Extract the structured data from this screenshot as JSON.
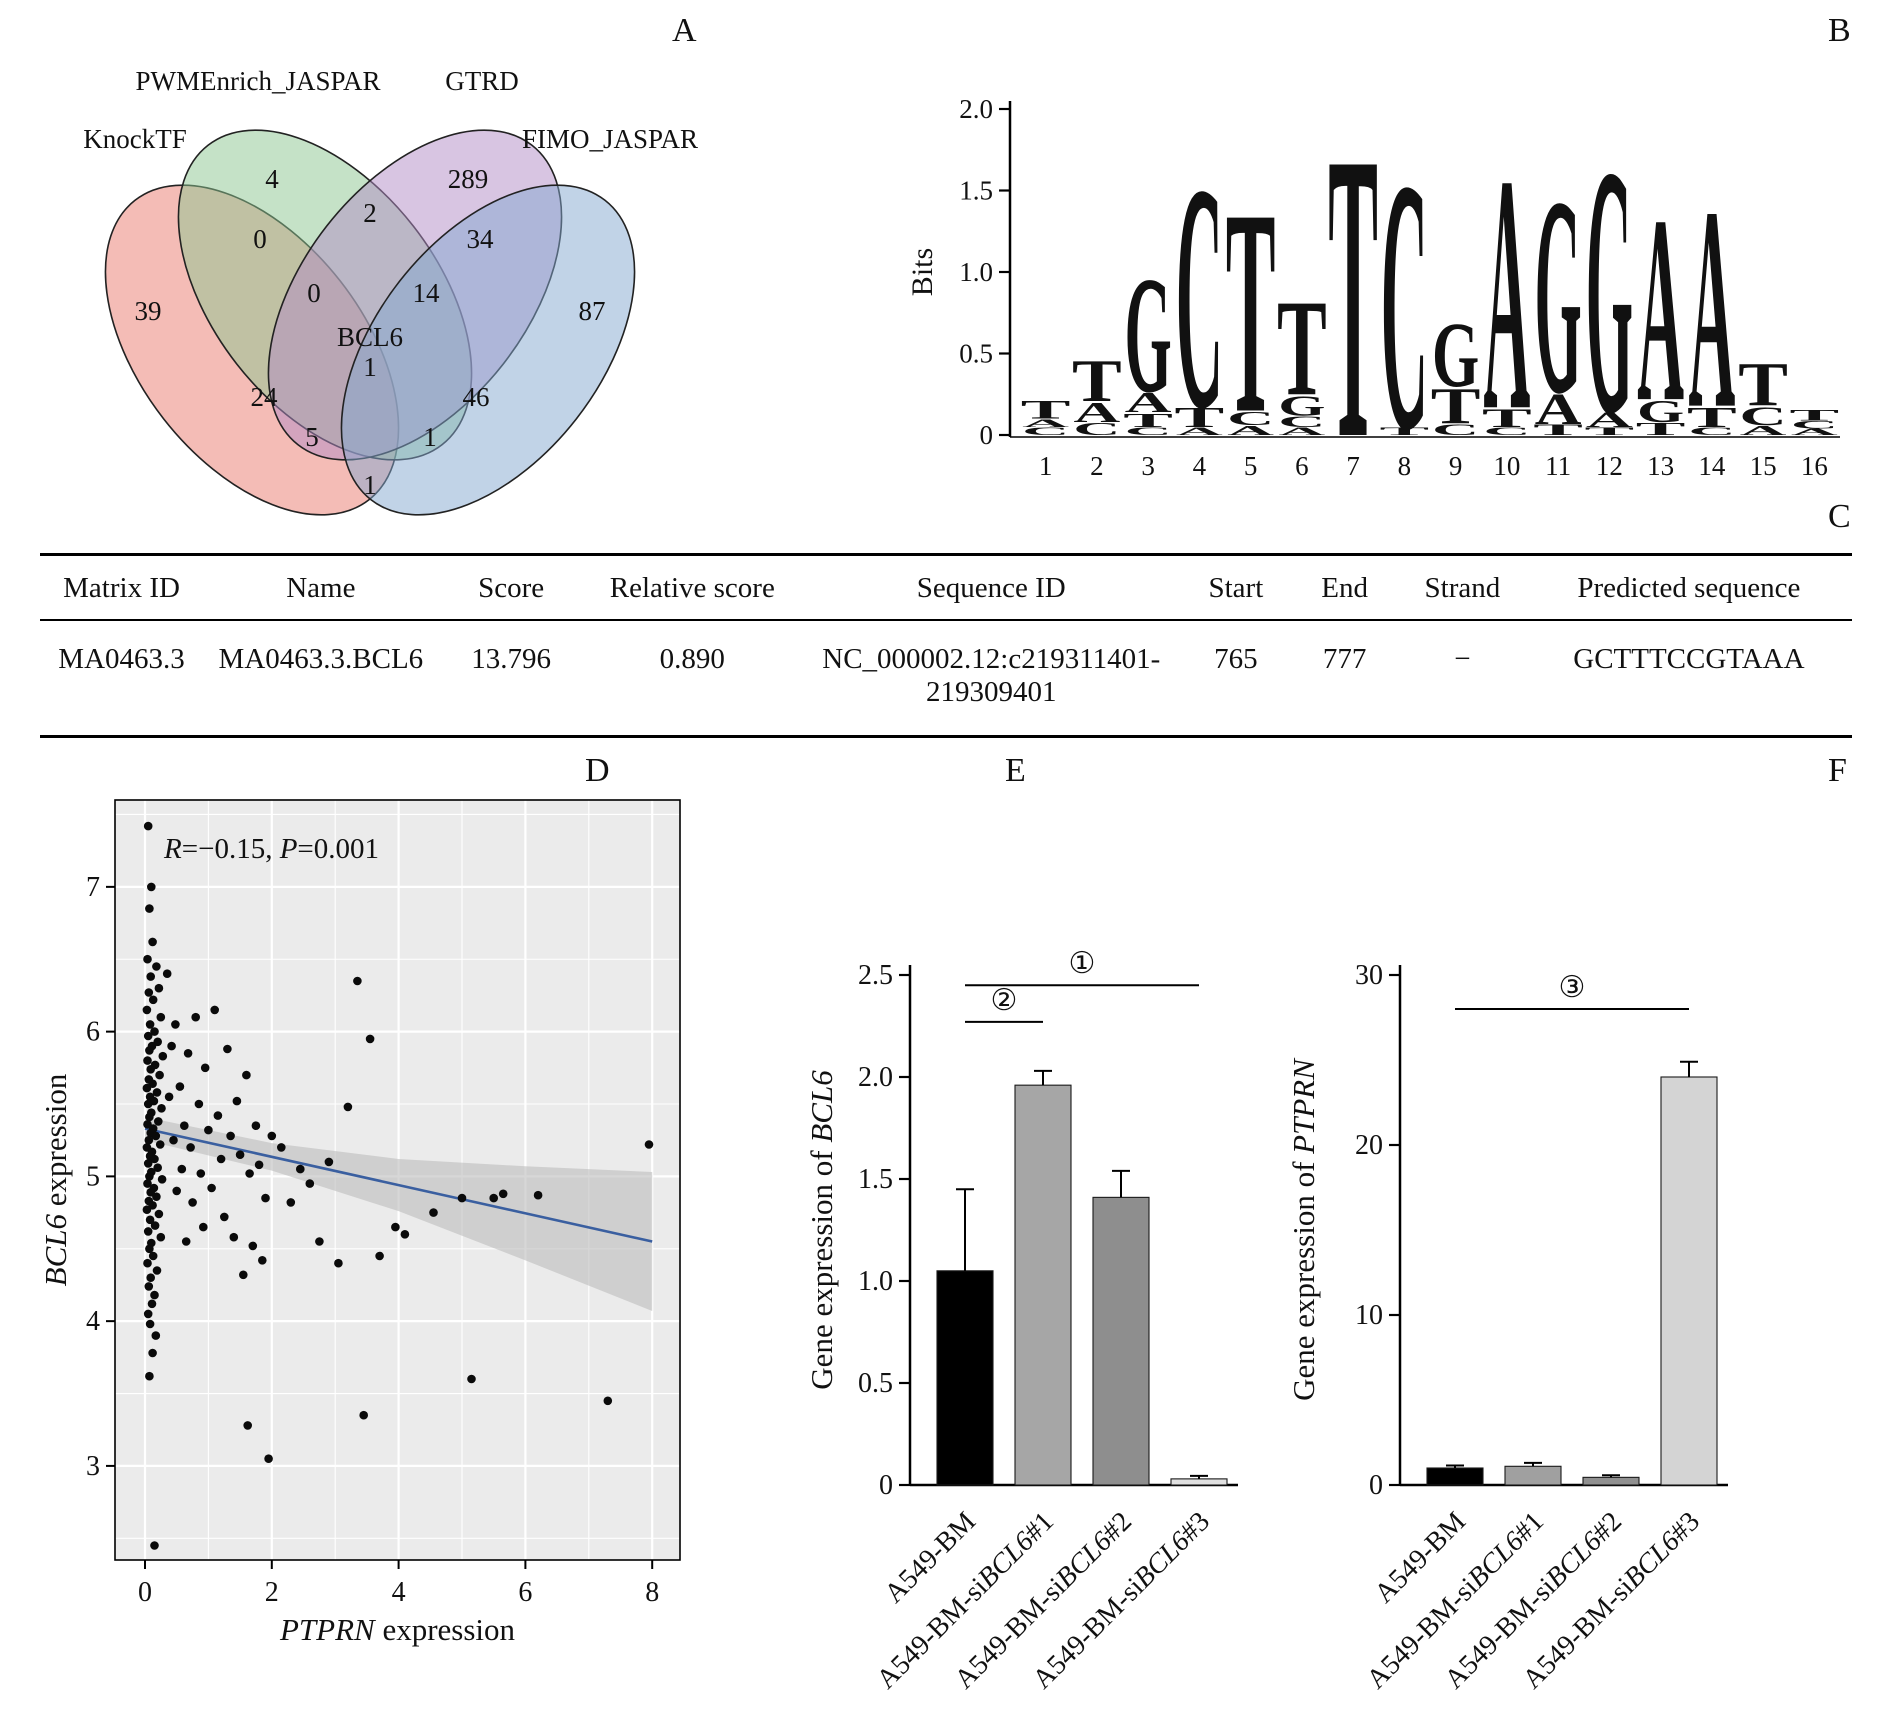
{
  "figure": {
    "panel_letters": {
      "a": "A",
      "b": "B",
      "c": "C",
      "d": "D",
      "e": "E",
      "f": "F"
    }
  },
  "chart_data": [
    {
      "id": "venn",
      "type": "venn",
      "sets": [
        {
          "name": "KnockTF",
          "color": "#e9796d"
        },
        {
          "name": "PWMEnrich_JASPAR",
          "color": "#8cc58f"
        },
        {
          "name": "GTRD",
          "color": "#b18cc6"
        },
        {
          "name": "FIMO_JASPAR",
          "color": "#84a8d0"
        }
      ],
      "center_gene": "BCL6",
      "regions": {
        "knocktf_only": "39",
        "pwmenrich_only": "4",
        "gtrd_only": "289",
        "fimo_only": "87",
        "knocktf_pwmenrich": "0",
        "pwmenrich_gtrd": "2",
        "gtrd_fimo": "34",
        "knocktf_pwmenrich_gtrd": "0",
        "pwmenrich_gtrd_fimo": "14",
        "all_four": "1",
        "knocktf_gtrd": "24",
        "pwmenrich_fimo": "46",
        "knocktf_pwmenrich_fimo": "5",
        "knocktf_gtrd_fimo": "1",
        "knocktf_fimo": "1"
      }
    },
    {
      "id": "motif_logo",
      "type": "logo",
      "ylabel": "Bits",
      "ylim": [
        0,
        2
      ],
      "yticks": [
        "0",
        "0.5",
        "1.0",
        "1.5",
        "2.0"
      ],
      "xticks": [
        "1",
        "2",
        "3",
        "4",
        "5",
        "6",
        "7",
        "8",
        "9",
        "10",
        "11",
        "12",
        "13",
        "14",
        "15",
        "16"
      ],
      "colors": {
        "A": "#2e9e54",
        "C": "#2a5fa5",
        "G": "#f0a32f",
        "T": "#d8414f"
      },
      "stacks": [
        [
          [
            "C",
            0.05
          ],
          [
            "A",
            0.05
          ],
          [
            "T",
            0.12
          ]
        ],
        [
          [
            "C",
            0.08
          ],
          [
            "A",
            0.13
          ],
          [
            "T",
            0.27
          ]
        ],
        [
          [
            "C",
            0.05
          ],
          [
            "T",
            0.09
          ],
          [
            "A",
            0.13
          ],
          [
            "G",
            0.75
          ]
        ],
        [
          [
            "A",
            0.05
          ],
          [
            "T",
            0.13
          ],
          [
            "C",
            1.45
          ]
        ],
        [
          [
            "A",
            0.06
          ],
          [
            "C",
            0.09
          ],
          [
            "T",
            1.32
          ]
        ],
        [
          [
            "A",
            0.05
          ],
          [
            "C",
            0.07
          ],
          [
            "G",
            0.13
          ],
          [
            "T",
            0.62
          ]
        ],
        [
          [
            "T",
            1.85
          ]
        ],
        [
          [
            "T",
            0.05
          ],
          [
            "C",
            1.62
          ]
        ],
        [
          [
            "C",
            0.07
          ],
          [
            "T",
            0.23
          ],
          [
            "G",
            0.42
          ]
        ],
        [
          [
            "C",
            0.05
          ],
          [
            "T",
            0.12
          ],
          [
            "A",
            1.52
          ]
        ],
        [
          [
            "T",
            0.07
          ],
          [
            "A",
            0.2
          ],
          [
            "G",
            1.27
          ]
        ],
        [
          [
            "T",
            0.05
          ],
          [
            "A",
            0.1
          ],
          [
            "G",
            1.6
          ]
        ],
        [
          [
            "T",
            0.08
          ],
          [
            "G",
            0.14
          ],
          [
            "A",
            1.2
          ]
        ],
        [
          [
            "C",
            0.05
          ],
          [
            "T",
            0.13
          ],
          [
            "A",
            1.3
          ]
        ],
        [
          [
            "A",
            0.06
          ],
          [
            "C",
            0.12
          ],
          [
            "T",
            0.28
          ]
        ],
        [
          [
            "A",
            0.04
          ],
          [
            "C",
            0.05
          ],
          [
            "T",
            0.07
          ]
        ]
      ]
    },
    {
      "id": "correlation_scatter",
      "type": "scatter",
      "annotation_segments": [
        {
          "text": "R",
          "italic": true
        },
        {
          "text": "=−0.15, ",
          "italic": false
        },
        {
          "text": "P",
          "italic": true
        },
        {
          "text": "=0.001",
          "italic": false
        }
      ],
      "xlabel_segments": [
        {
          "text": "PTPRN",
          "italic": true
        },
        {
          "text": " expression",
          "italic": false
        }
      ],
      "ylabel_segments": [
        {
          "text": "BCL6",
          "italic": true
        },
        {
          "text": " expression",
          "italic": false
        }
      ],
      "xlim": [
        -0.5,
        8.45
      ],
      "ylim": [
        2.35,
        7.6
      ],
      "xticks": [
        0,
        2,
        4,
        6,
        8
      ],
      "yticks": [
        3,
        4,
        5,
        6,
        7
      ],
      "regression": {
        "x": [
          0,
          8
        ],
        "y": [
          5.33,
          4.55
        ],
        "color": "#3a5fa0"
      },
      "ci_band": {
        "x": [
          0,
          2,
          4,
          6,
          8
        ],
        "upper": [
          5.41,
          5.23,
          5.12,
          5.07,
          5.03
        ],
        "lower": [
          5.25,
          5.04,
          4.76,
          4.42,
          4.07
        ]
      },
      "points": [
        [
          0.05,
          7.42
        ],
        [
          0.1,
          7.0
        ],
        [
          0.07,
          6.85
        ],
        [
          0.12,
          6.62
        ],
        [
          0.04,
          6.5
        ],
        [
          0.18,
          6.45
        ],
        [
          0.09,
          6.38
        ],
        [
          0.22,
          6.3
        ],
        [
          0.06,
          6.27
        ],
        [
          0.13,
          6.22
        ],
        [
          0.03,
          6.15
        ],
        [
          0.25,
          6.1
        ],
        [
          0.08,
          6.05
        ],
        [
          0.15,
          6.0
        ],
        [
          0.05,
          5.97
        ],
        [
          0.2,
          5.93
        ],
        [
          0.11,
          5.9
        ],
        [
          0.07,
          5.87
        ],
        [
          0.28,
          5.83
        ],
        [
          0.04,
          5.8
        ],
        [
          0.16,
          5.77
        ],
        [
          0.09,
          5.74
        ],
        [
          0.23,
          5.7
        ],
        [
          0.06,
          5.67
        ],
        [
          0.12,
          5.64
        ],
        [
          0.03,
          5.61
        ],
        [
          0.19,
          5.58
        ],
        [
          0.08,
          5.55
        ],
        [
          0.14,
          5.52
        ],
        [
          0.05,
          5.5
        ],
        [
          0.26,
          5.47
        ],
        [
          0.1,
          5.44
        ],
        [
          0.07,
          5.41
        ],
        [
          0.21,
          5.38
        ],
        [
          0.04,
          5.36
        ],
        [
          0.13,
          5.33
        ],
        [
          0.09,
          5.3
        ],
        [
          0.17,
          5.28
        ],
        [
          0.06,
          5.25
        ],
        [
          0.24,
          5.22
        ],
        [
          0.03,
          5.2
        ],
        [
          0.11,
          5.17
        ],
        [
          0.08,
          5.14
        ],
        [
          0.15,
          5.12
        ],
        [
          0.05,
          5.09
        ],
        [
          0.2,
          5.06
        ],
        [
          0.1,
          5.03
        ],
        [
          0.07,
          5.0
        ],
        [
          0.27,
          4.98
        ],
        [
          0.04,
          4.95
        ],
        [
          0.14,
          4.92
        ],
        [
          0.09,
          4.89
        ],
        [
          0.18,
          4.86
        ],
        [
          0.06,
          4.83
        ],
        [
          0.12,
          4.8
        ],
        [
          0.03,
          4.77
        ],
        [
          0.22,
          4.74
        ],
        [
          0.08,
          4.7
        ],
        [
          0.16,
          4.66
        ],
        [
          0.05,
          4.62
        ],
        [
          0.25,
          4.58
        ],
        [
          0.1,
          4.54
        ],
        [
          0.07,
          4.5
        ],
        [
          0.13,
          4.45
        ],
        [
          0.04,
          4.4
        ],
        [
          0.19,
          4.35
        ],
        [
          0.09,
          4.3
        ],
        [
          0.06,
          4.24
        ],
        [
          0.15,
          4.18
        ],
        [
          0.11,
          4.12
        ],
        [
          0.05,
          4.05
        ],
        [
          0.08,
          3.98
        ],
        [
          0.17,
          3.9
        ],
        [
          0.12,
          3.78
        ],
        [
          0.07,
          3.62
        ],
        [
          0.15,
          2.45
        ],
        [
          0.35,
          6.4
        ],
        [
          0.38,
          5.55
        ],
        [
          0.42,
          5.9
        ],
        [
          0.45,
          5.25
        ],
        [
          0.48,
          6.05
        ],
        [
          0.5,
          4.9
        ],
        [
          0.55,
          5.62
        ],
        [
          0.58,
          5.05
        ],
        [
          0.62,
          5.35
        ],
        [
          0.65,
          4.55
        ],
        [
          0.68,
          5.85
        ],
        [
          0.72,
          5.2
        ],
        [
          0.75,
          4.82
        ],
        [
          0.8,
          6.1
        ],
        [
          0.85,
          5.5
        ],
        [
          0.88,
          5.02
        ],
        [
          0.92,
          4.65
        ],
        [
          0.95,
          5.75
        ],
        [
          1.0,
          5.32
        ],
        [
          1.05,
          4.92
        ],
        [
          1.1,
          6.15
        ],
        [
          1.15,
          5.42
        ],
        [
          1.2,
          5.12
        ],
        [
          1.25,
          4.72
        ],
        [
          1.3,
          5.88
        ],
        [
          1.35,
          5.28
        ],
        [
          1.4,
          4.58
        ],
        [
          1.45,
          5.52
        ],
        [
          1.5,
          5.15
        ],
        [
          1.55,
          4.32
        ],
        [
          1.6,
          5.7
        ],
        [
          1.62,
          3.28
        ],
        [
          1.65,
          5.02
        ],
        [
          1.7,
          4.52
        ],
        [
          1.75,
          5.35
        ],
        [
          1.8,
          5.08
        ],
        [
          1.85,
          4.42
        ],
        [
          1.9,
          4.85
        ],
        [
          1.95,
          3.05
        ],
        [
          2.0,
          5.28
        ],
        [
          2.15,
          5.2
        ],
        [
          2.3,
          4.82
        ],
        [
          2.45,
          5.05
        ],
        [
          2.6,
          4.95
        ],
        [
          2.75,
          4.55
        ],
        [
          2.9,
          5.1
        ],
        [
          3.05,
          4.4
        ],
        [
          3.2,
          5.48
        ],
        [
          3.35,
          6.35
        ],
        [
          3.45,
          3.35
        ],
        [
          3.55,
          5.95
        ],
        [
          3.7,
          4.45
        ],
        [
          3.95,
          4.65
        ],
        [
          4.1,
          4.6
        ],
        [
          4.55,
          4.75
        ],
        [
          5.0,
          4.85
        ],
        [
          5.15,
          3.6
        ],
        [
          5.5,
          4.85
        ],
        [
          5.65,
          4.88
        ],
        [
          6.2,
          4.87
        ],
        [
          7.3,
          3.45
        ],
        [
          7.95,
          5.22
        ]
      ]
    },
    {
      "id": "bcl6_expression_bars",
      "type": "bar",
      "ylabel_segments": [
        {
          "text": "Gene expression of ",
          "italic": false
        },
        {
          "text": "BCL6",
          "italic": true
        }
      ],
      "ylim": [
        0,
        2.5
      ],
      "yticks": [
        "0",
        "0.5",
        "1.0",
        "1.5",
        "2.0",
        "2.5"
      ],
      "categories": [
        {
          "segments": [
            {
              "text": "A549-BM",
              "italic": false
            }
          ]
        },
        {
          "segments": [
            {
              "text": "A549-BM-si",
              "italic": false
            },
            {
              "text": "BCL6",
              "italic": true
            },
            {
              "text": "#1",
              "italic": false
            }
          ]
        },
        {
          "segments": [
            {
              "text": "A549-BM-si",
              "italic": false
            },
            {
              "text": "BCL6",
              "italic": true
            },
            {
              "text": "#2",
              "italic": false
            }
          ]
        },
        {
          "segments": [
            {
              "text": "A549-BM-si",
              "italic": false
            },
            {
              "text": "BCL6",
              "italic": true
            },
            {
              "text": "#3",
              "italic": false
            }
          ]
        }
      ],
      "values": [
        1.05,
        1.96,
        1.41,
        0.03
      ],
      "errors": [
        0.4,
        0.07,
        0.13,
        0.015
      ],
      "colors": [
        "#000000",
        "#a6a6a6",
        "#8e8e8e",
        "#e0e0e0"
      ],
      "significance": [
        {
          "label": "①",
          "from": 0,
          "to": 3,
          "height": 2.45
        },
        {
          "label": "②",
          "from": 0,
          "to": 1,
          "height": 2.27
        }
      ]
    },
    {
      "id": "ptprn_expression_bars",
      "type": "bar",
      "ylabel_segments": [
        {
          "text": "Gene expression of ",
          "italic": false
        },
        {
          "text": "PTPRN",
          "italic": true
        }
      ],
      "ylim": [
        0,
        30
      ],
      "yticks": [
        "0",
        "10",
        "20",
        "30"
      ],
      "categories": [
        {
          "segments": [
            {
              "text": "A549-BM",
              "italic": false
            }
          ]
        },
        {
          "segments": [
            {
              "text": "A549-BM-si",
              "italic": false
            },
            {
              "text": "BCL6",
              "italic": true
            },
            {
              "text": "#1",
              "italic": false
            }
          ]
        },
        {
          "segments": [
            {
              "text": "A549-BM-si",
              "italic": false
            },
            {
              "text": "BCL6",
              "italic": true
            },
            {
              "text": "#2",
              "italic": false
            }
          ]
        },
        {
          "segments": [
            {
              "text": "A549-BM-si",
              "italic": false
            },
            {
              "text": "BCL6",
              "italic": true
            },
            {
              "text": "#3",
              "italic": false
            }
          ]
        }
      ],
      "values": [
        1.0,
        1.1,
        0.45,
        24.0
      ],
      "errors": [
        0.15,
        0.2,
        0.12,
        0.9
      ],
      "colors": [
        "#000000",
        "#a0a0a0",
        "#909090",
        "#d4d4d4"
      ],
      "significance": [
        {
          "label": "③",
          "from": 0,
          "to": 3,
          "height": 28
        }
      ]
    },
    {
      "id": "fimo_result_table",
      "type": "table",
      "headers": [
        "Matrix ID",
        "Name",
        "Score",
        "Relative score",
        "Sequence ID",
        "Start",
        "End",
        "Strand",
        "Predicted sequence"
      ],
      "rows": [
        [
          "MA0463.3",
          "MA0463.3.BCL6",
          "13.796",
          "0.890",
          "NC_000002.12:c219311401-219309401",
          "765",
          "777",
          "−",
          "GCTTTCCGTAAA"
        ]
      ]
    }
  ]
}
